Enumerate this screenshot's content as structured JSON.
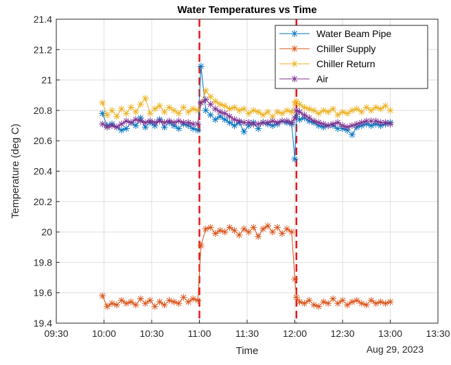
{
  "chart_data": {
    "type": "line",
    "title": "Water Temperatures vs Time",
    "xlabel": "Time",
    "ylabel": "Temperature (deg C)",
    "date_label": "Aug 29, 2023",
    "x_unit": "time of day (HH:MM)",
    "xlim": [
      "09:30",
      "13:30"
    ],
    "ylim": [
      19.4,
      21.4
    ],
    "x_ticks": [
      "09:30",
      "10:00",
      "10:30",
      "11:00",
      "11:30",
      "12:00",
      "12:30",
      "13:00",
      "13:30"
    ],
    "y_ticks": [
      "19.4",
      "19.6",
      "19.8",
      "20",
      "20.2",
      "20.4",
      "20.6",
      "20.8",
      "21",
      "21.2",
      "21.4"
    ],
    "grid": true,
    "legend_position": "top-right",
    "marker": "asterisk",
    "vertical_lines": [
      {
        "x": "11:00",
        "color": "#e8141b",
        "style": "dashed"
      },
      {
        "x": "12:01",
        "color": "#e8141b",
        "style": "dashed"
      }
    ],
    "series": [
      {
        "name": "Water Beam Pipe",
        "color": "#0072bd",
        "x": [
          "09:59",
          "10:02",
          "10:05",
          "10:08",
          "10:11",
          "10:14",
          "10:17",
          "10:20",
          "10:23",
          "10:26",
          "10:29",
          "10:32",
          "10:35",
          "10:38",
          "10:41",
          "10:44",
          "10:47",
          "10:50",
          "10:53",
          "10:56",
          "10:59",
          "11:01",
          "11:04",
          "11:07",
          "11:10",
          "11:13",
          "11:16",
          "11:19",
          "11:22",
          "11:25",
          "11:28",
          "11:31",
          "11:34",
          "11:37",
          "11:40",
          "11:43",
          "11:46",
          "11:49",
          "11:52",
          "11:55",
          "11:58",
          "12:00",
          "12:01",
          "12:03",
          "12:06",
          "12:09",
          "12:12",
          "12:15",
          "12:18",
          "12:21",
          "12:24",
          "12:27",
          "12:30",
          "12:33",
          "12:36",
          "12:39",
          "12:42",
          "12:45",
          "12:48",
          "12:51",
          "12:54",
          "12:57",
          "13:00"
        ],
        "y": [
          20.78,
          20.7,
          20.71,
          20.69,
          20.67,
          20.68,
          20.72,
          20.7,
          20.75,
          20.69,
          20.72,
          20.7,
          20.74,
          20.69,
          20.72,
          20.7,
          20.68,
          20.71,
          20.7,
          20.68,
          20.67,
          21.09,
          20.8,
          20.77,
          20.74,
          20.76,
          20.74,
          20.72,
          20.7,
          20.72,
          20.66,
          20.7,
          20.72,
          20.68,
          20.72,
          20.71,
          20.7,
          20.71,
          20.73,
          20.72,
          20.71,
          20.48,
          20.76,
          20.74,
          20.75,
          20.73,
          20.72,
          20.7,
          20.69,
          20.7,
          20.7,
          20.68,
          20.68,
          20.67,
          20.64,
          20.69,
          20.7,
          20.71,
          20.7,
          20.71,
          20.7,
          20.71,
          20.72
        ]
      },
      {
        "name": "Chiller Supply",
        "color": "#d95319",
        "x": [
          "09:59",
          "10:02",
          "10:05",
          "10:08",
          "10:11",
          "10:14",
          "10:17",
          "10:20",
          "10:23",
          "10:26",
          "10:29",
          "10:32",
          "10:35",
          "10:38",
          "10:41",
          "10:44",
          "10:47",
          "10:50",
          "10:53",
          "10:56",
          "10:59",
          "11:01",
          "11:04",
          "11:07",
          "11:10",
          "11:13",
          "11:16",
          "11:19",
          "11:22",
          "11:25",
          "11:28",
          "11:31",
          "11:34",
          "11:37",
          "11:40",
          "11:43",
          "11:46",
          "11:49",
          "11:52",
          "11:55",
          "11:58",
          "12:00",
          "12:01",
          "12:03",
          "12:06",
          "12:09",
          "12:12",
          "12:15",
          "12:18",
          "12:21",
          "12:24",
          "12:27",
          "12:30",
          "12:33",
          "12:36",
          "12:39",
          "12:42",
          "12:45",
          "12:48",
          "12:51",
          "12:54",
          "12:57",
          "13:00"
        ],
        "y": [
          19.58,
          19.51,
          19.53,
          19.52,
          19.55,
          19.53,
          19.54,
          19.52,
          19.56,
          19.53,
          19.55,
          19.51,
          19.54,
          19.52,
          19.55,
          19.54,
          19.53,
          19.57,
          19.54,
          19.56,
          19.55,
          19.91,
          20.02,
          20.03,
          19.99,
          20.01,
          20.0,
          20.03,
          20.01,
          19.98,
          20.02,
          20.0,
          20.03,
          19.97,
          20.02,
          20.04,
          20.0,
          20.03,
          19.99,
          20.02,
          20.0,
          19.69,
          19.57,
          19.54,
          19.53,
          19.55,
          19.52,
          19.51,
          19.54,
          19.53,
          19.56,
          19.53,
          19.55,
          19.52,
          19.54,
          19.55,
          19.53,
          19.52,
          19.55,
          19.53,
          19.54,
          19.53,
          19.54
        ]
      },
      {
        "name": "Chiller Return",
        "color": "#edb120",
        "x": [
          "09:59",
          "10:02",
          "10:05",
          "10:08",
          "10:11",
          "10:14",
          "10:17",
          "10:20",
          "10:23",
          "10:26",
          "10:29",
          "10:32",
          "10:35",
          "10:38",
          "10:41",
          "10:44",
          "10:47",
          "10:50",
          "10:53",
          "10:56",
          "10:59",
          "11:01",
          "11:04",
          "11:07",
          "11:10",
          "11:13",
          "11:16",
          "11:19",
          "11:22",
          "11:25",
          "11:28",
          "11:31",
          "11:34",
          "11:37",
          "11:40",
          "11:43",
          "11:46",
          "11:49",
          "11:52",
          "11:55",
          "11:58",
          "12:00",
          "12:01",
          "12:03",
          "12:06",
          "12:09",
          "12:12",
          "12:15",
          "12:18",
          "12:21",
          "12:24",
          "12:27",
          "12:30",
          "12:33",
          "12:36",
          "12:39",
          "12:42",
          "12:45",
          "12:48",
          "12:51",
          "12:54",
          "12:57",
          "13:00"
        ],
        "y": [
          20.85,
          20.77,
          20.8,
          20.76,
          20.81,
          20.78,
          20.82,
          20.79,
          20.84,
          20.88,
          20.78,
          20.81,
          20.83,
          20.79,
          20.82,
          20.8,
          20.78,
          20.82,
          20.79,
          20.81,
          20.8,
          20.85,
          20.93,
          20.89,
          20.86,
          20.84,
          20.83,
          20.81,
          20.82,
          20.8,
          20.81,
          20.78,
          20.8,
          20.79,
          20.77,
          20.79,
          20.76,
          20.79,
          20.78,
          20.8,
          20.79,
          20.85,
          20.86,
          20.84,
          20.82,
          20.81,
          20.8,
          20.78,
          20.8,
          20.79,
          20.81,
          20.77,
          20.79,
          20.78,
          20.8,
          20.81,
          20.79,
          20.82,
          20.8,
          20.82,
          20.81,
          20.83,
          20.8
        ]
      },
      {
        "name": "Air",
        "color": "#7e2f8e",
        "x": [
          "09:59",
          "10:02",
          "10:05",
          "10:08",
          "10:11",
          "10:14",
          "10:17",
          "10:20",
          "10:23",
          "10:26",
          "10:29",
          "10:32",
          "10:35",
          "10:38",
          "10:41",
          "10:44",
          "10:47",
          "10:50",
          "10:53",
          "10:56",
          "10:59",
          "11:01",
          "11:04",
          "11:07",
          "11:10",
          "11:13",
          "11:16",
          "11:19",
          "11:22",
          "11:25",
          "11:28",
          "11:31",
          "11:34",
          "11:37",
          "11:40",
          "11:43",
          "11:46",
          "11:49",
          "11:52",
          "11:55",
          "11:58",
          "12:00",
          "12:01",
          "12:03",
          "12:06",
          "12:09",
          "12:12",
          "12:15",
          "12:18",
          "12:21",
          "12:24",
          "12:27",
          "12:30",
          "12:33",
          "12:36",
          "12:39",
          "12:42",
          "12:45",
          "12:48",
          "12:51",
          "12:54",
          "12:57",
          "13:00"
        ],
        "y": [
          20.71,
          20.69,
          20.7,
          20.69,
          20.71,
          20.73,
          20.72,
          20.74,
          20.73,
          20.72,
          20.73,
          20.72,
          20.73,
          20.72,
          20.73,
          20.72,
          20.73,
          20.72,
          20.72,
          20.71,
          20.71,
          20.85,
          20.87,
          20.84,
          20.81,
          20.79,
          20.78,
          20.76,
          20.74,
          20.73,
          20.72,
          20.72,
          20.71,
          20.71,
          20.72,
          20.72,
          20.73,
          20.72,
          20.73,
          20.73,
          20.72,
          20.75,
          20.8,
          20.79,
          20.77,
          20.75,
          20.73,
          20.72,
          20.71,
          20.7,
          20.71,
          20.72,
          20.7,
          20.69,
          20.7,
          20.71,
          20.72,
          20.73,
          20.73,
          20.73,
          20.72,
          20.72,
          20.71
        ]
      }
    ]
  }
}
